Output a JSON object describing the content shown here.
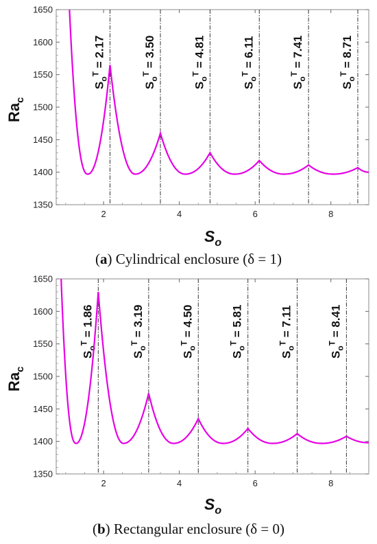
{
  "chart_data": [
    {
      "type": "line",
      "caption_letter": "a",
      "caption_text": " Cylindrical enclosure (δ = 1)",
      "xlabel_main": "S",
      "xlabel_sub": "o",
      "ylabel_main": "Ra",
      "ylabel_sub": "c",
      "xlim": [
        0.75,
        9.0
      ],
      "ylim": [
        1350,
        1650
      ],
      "xticks": [
        2,
        4,
        6,
        8
      ],
      "yticks": [
        1350,
        1400,
        1450,
        1500,
        1550,
        1600,
        1650
      ],
      "curve_color": "#e600e6",
      "min_value": 1397,
      "thresholds": [
        {
          "x": 2.17,
          "peak": 1565,
          "label": "2.17"
        },
        {
          "x": 3.5,
          "peak": 1460,
          "label": "3.50"
        },
        {
          "x": 4.81,
          "peak": 1430,
          "label": "4.81"
        },
        {
          "x": 6.11,
          "peak": 1418,
          "label": "6.11"
        },
        {
          "x": 7.41,
          "peak": 1411,
          "label": "7.41"
        },
        {
          "x": 8.71,
          "peak": 1407,
          "label": "8.71"
        }
      ],
      "start_point": {
        "x": 1.1,
        "y": 1650
      },
      "end_point": {
        "x": 9.0,
        "y": 1400
      }
    },
    {
      "type": "line",
      "caption_letter": "b",
      "caption_text": " Rectangular enclosure (δ = 0)",
      "xlabel_main": "S",
      "xlabel_sub": "o",
      "ylabel_main": "Ra",
      "ylabel_sub": "c",
      "xlim": [
        0.75,
        9.0
      ],
      "ylim": [
        1350,
        1650
      ],
      "xticks": [
        2,
        4,
        6,
        8
      ],
      "yticks": [
        1350,
        1400,
        1450,
        1500,
        1550,
        1600,
        1650
      ],
      "curve_color": "#e600e6",
      "min_value": 1397,
      "thresholds": [
        {
          "x": 1.86,
          "peak": 1630,
          "label": "1.86"
        },
        {
          "x": 3.19,
          "peak": 1474,
          "label": "3.19"
        },
        {
          "x": 4.5,
          "peak": 1435,
          "label": "4.50"
        },
        {
          "x": 5.81,
          "peak": 1420,
          "label": "5.81"
        },
        {
          "x": 7.11,
          "peak": 1412,
          "label": "7.11"
        },
        {
          "x": 8.41,
          "peak": 1408,
          "label": "8.41"
        }
      ],
      "start_point": {
        "x": 0.88,
        "y": 1650
      },
      "end_point": {
        "x": 9.0,
        "y": 1398
      }
    }
  ]
}
